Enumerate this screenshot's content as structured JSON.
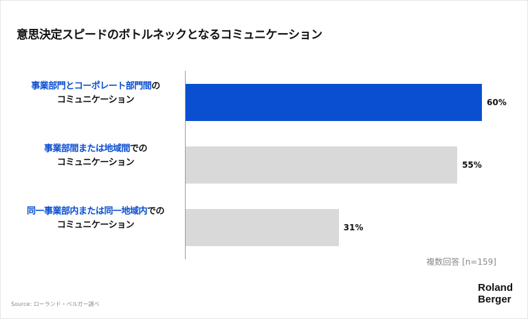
{
  "chart_data": {
    "type": "bar",
    "orientation": "horizontal",
    "title": "意思決定スピードのボトルネックとなるコミュニケーション",
    "categories": [
      {
        "highlight": "事業部門とコーポレート部門間",
        "rest": "の",
        "line2": "コミュニケーション"
      },
      {
        "highlight": "事業部間または地域間",
        "rest": "での",
        "line2": "コミュニケーション"
      },
      {
        "highlight": "同一事業部内または同一地域内",
        "rest": "での",
        "line2": "コミュニケーション"
      }
    ],
    "values": [
      60,
      55,
      31
    ],
    "value_labels": [
      "60%",
      "55%",
      "31%"
    ],
    "colors": [
      "#0a4fd0",
      "#d9d9d9",
      "#d9d9d9"
    ],
    "xlim": [
      0,
      60
    ],
    "grid": false,
    "note": "複数回答 [n=159]"
  },
  "footer": {
    "source": "Source: ローランド・ベルガー調べ",
    "logo_line1": "Roland",
    "logo_line2": "Berger"
  }
}
